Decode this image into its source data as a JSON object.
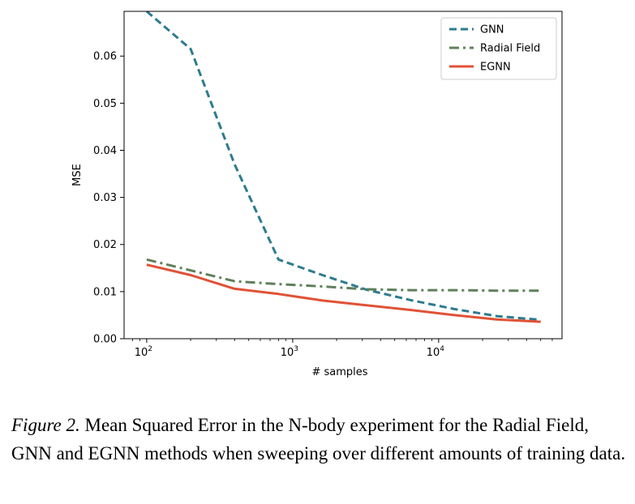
{
  "chart_data": {
    "type": "line",
    "xlabel": "# samples",
    "ylabel": "MSE",
    "xscale": "log",
    "xlim": [
      70,
      70000
    ],
    "ylim": [
      0,
      0.0695
    ],
    "x_ticks": [
      100,
      1000,
      10000
    ],
    "x_tick_labels": [
      {
        "base": "10",
        "exp": "2"
      },
      {
        "base": "10",
        "exp": "3"
      },
      {
        "base": "10",
        "exp": "4"
      }
    ],
    "y_ticks": [
      0.0,
      0.01,
      0.02,
      0.03,
      0.04,
      0.05,
      0.06
    ],
    "y_tick_labels": [
      "0.00",
      "0.01",
      "0.02",
      "0.03",
      "0.04",
      "0.05",
      "0.06"
    ],
    "legend_position": "top-right",
    "grid": false,
    "series": [
      {
        "name": "GNN",
        "color": "#2e7b8f",
        "style": "dashed",
        "x": [
          100,
          200,
          400,
          800,
          1600,
          3200,
          6400,
          12800,
          25000,
          50000
        ],
        "y": [
          0.0695,
          0.0615,
          0.037,
          0.0168,
          0.0135,
          0.0104,
          0.0082,
          0.0063,
          0.0048,
          0.004
        ]
      },
      {
        "name": "Radial Field",
        "color": "#5f805a",
        "style": "dashdot",
        "x": [
          100,
          200,
          400,
          800,
          1600,
          3200,
          6400,
          12800,
          25000,
          50000
        ],
        "y": [
          0.0168,
          0.0145,
          0.0122,
          0.0116,
          0.0111,
          0.0105,
          0.0103,
          0.0103,
          0.0102,
          0.0102
        ]
      },
      {
        "name": "EGNN",
        "color": "#e05236",
        "style": "solid",
        "x": [
          100,
          200,
          400,
          800,
          1600,
          3200,
          6400,
          12800,
          25000,
          50000
        ],
        "y": [
          0.0157,
          0.0135,
          0.0106,
          0.0095,
          0.0081,
          0.0071,
          0.0061,
          0.005,
          0.0041,
          0.0036
        ]
      }
    ]
  },
  "caption": {
    "label": "Figure 2.",
    "text": " Mean Squared Error in the N-body experiment for the Radial Field, GNN and EGNN methods when sweeping over different amounts of training data."
  }
}
